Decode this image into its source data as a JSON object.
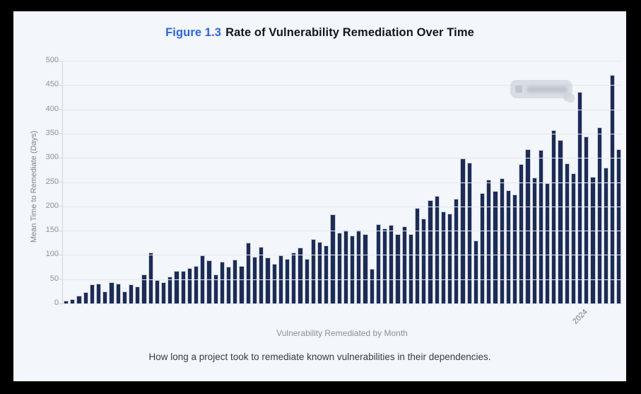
{
  "window": {
    "frame_color": "#000000",
    "page_bg": "#f3f6fa"
  },
  "header": {
    "figure_label": "Figure 1.3",
    "title": "Rate of Vulnerability Remediation Over Time"
  },
  "chart_data": {
    "type": "bar",
    "title": "Figure 1.3 Rate of Vulnerability Remediation Over Time",
    "ylabel": "Mean Time to Remediate (Days)",
    "xlabel": "Vulnerability Remediated by Month",
    "ylim": [
      0,
      500
    ],
    "ytick_step": 50,
    "grid": true,
    "legend_position": "none",
    "bar_color": "#1d2b57",
    "bar_edge_color": "#c8d1de",
    "x_tick_label": "2024",
    "x_tick_fraction": 0.93,
    "values": [
      4,
      7,
      15,
      22,
      38,
      40,
      24,
      43,
      39,
      24,
      38,
      33,
      59,
      103,
      47,
      43,
      54,
      65,
      66,
      71,
      76,
      97,
      87,
      59,
      85,
      75,
      89,
      76,
      124,
      95,
      115,
      94,
      80,
      98,
      90,
      104,
      113,
      91,
      131,
      125,
      118,
      182,
      145,
      150,
      138,
      150,
      141,
      70,
      162,
      153,
      160,
      141,
      157,
      142,
      195,
      174,
      211,
      220,
      188,
      184,
      215,
      298,
      289,
      129,
      226,
      254,
      231,
      256,
      232,
      223,
      286,
      316,
      258,
      315,
      247,
      356,
      336,
      287,
      267,
      434,
      342,
      260,
      362,
      279,
      469,
      317
    ]
  },
  "tooltip": {
    "style": "blurred-unreadable"
  },
  "caption": "How long a project took to remediate known vulnerabilities in their dependencies."
}
